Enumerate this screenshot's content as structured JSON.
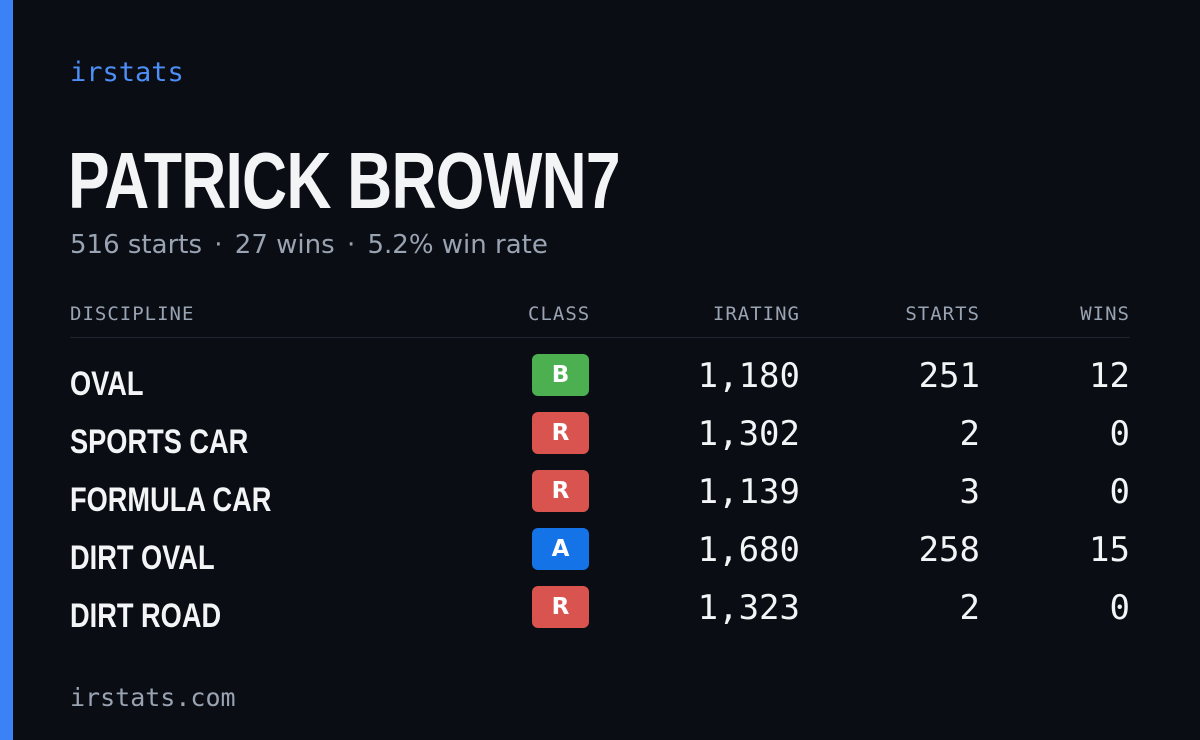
{
  "brand": "irstats",
  "player": {
    "name": "PATRICK BROWN7",
    "summary": {
      "starts": "516 starts",
      "wins": "27 wins",
      "win_rate": "5.2% win rate",
      "separator": "·"
    }
  },
  "table": {
    "headers": {
      "discipline": "DISCIPLINE",
      "class": "CLASS",
      "irating": "IRATING",
      "starts": "STARTS",
      "wins": "WINS"
    },
    "rows": [
      {
        "discipline": "OVAL",
        "class": "B",
        "class_color": "#4caf50",
        "irating": "1,180",
        "starts": "251",
        "wins": "12"
      },
      {
        "discipline": "SPORTS CAR",
        "class": "R",
        "class_color": "#d9534f",
        "irating": "1,302",
        "starts": "2",
        "wins": "0"
      },
      {
        "discipline": "FORMULA CAR",
        "class": "R",
        "class_color": "#d9534f",
        "irating": "1,139",
        "starts": "3",
        "wins": "0"
      },
      {
        "discipline": "DIRT OVAL",
        "class": "A",
        "class_color": "#1473e6",
        "irating": "1,680",
        "starts": "258",
        "wins": "15"
      },
      {
        "discipline": "DIRT ROAD",
        "class": "R",
        "class_color": "#d9534f",
        "irating": "1,323",
        "starts": "2",
        "wins": "0"
      }
    ]
  },
  "footer": {
    "url": "irstats.com"
  },
  "colors": {
    "background": "#0a0d14",
    "accent": "#3b82f6",
    "text": "#f3f4f6",
    "muted": "#9aa3b2"
  }
}
